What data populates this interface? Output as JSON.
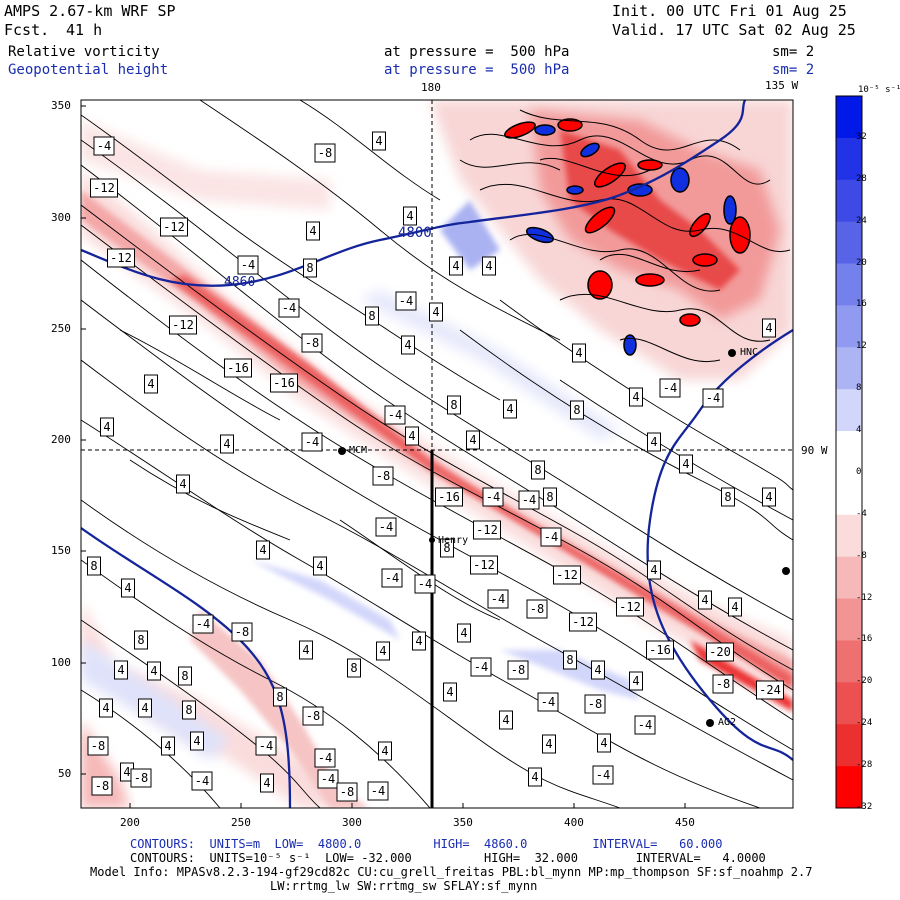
{
  "header": {
    "model": "AMPS 2.67-km WRF SP",
    "forecast_label": "Fcst.",
    "forecast_hours": "41 h",
    "init": "Init. 00 UTC Fri 01 Aug 25",
    "valid": "Valid. 17 UTC Sat 02 Aug 25",
    "field1": "Relative vorticity",
    "field2": "Geopotential height",
    "pressure1": "at pressure =  500 hPa",
    "pressure2": "at pressure =  500 hPa",
    "sm1": "sm= 2",
    "sm2": "sm= 2"
  },
  "map": {
    "top_lon_left": "180",
    "top_lon_right": "135 W",
    "right_lon": "90 W",
    "y_ticks": [
      "350",
      "300",
      "250",
      "200",
      "150",
      "100",
      "50"
    ],
    "x_ticks": [
      "200",
      "250",
      "300",
      "350",
      "400",
      "450"
    ],
    "stations": [
      "MCM",
      "Henry",
      "HNC",
      "AG2"
    ],
    "height_contour_labels": [
      "4800",
      "4860"
    ]
  },
  "colorbar": {
    "unit": "10⁻⁵ s⁻¹",
    "ticks": [
      "32",
      "28",
      "24",
      "20",
      "16",
      "12",
      "8",
      "4",
      "0",
      "-4",
      "-8",
      "-12",
      "-16",
      "-20",
      "-24",
      "-28",
      "-32"
    ],
    "colors": [
      "#0018e8",
      "#2232e6",
      "#3d4ae6",
      "#5864e8",
      "#7480ec",
      "#909af0",
      "#acb4f4",
      "#d2d6fa",
      "#ffffff",
      "#ffffff",
      "#fadcdc",
      "#f6b8b8",
      "#f29494",
      "#ee7070",
      "#ec5050",
      "#ec3030",
      "#ff0000"
    ]
  },
  "footer": {
    "line1": "CONTOURS:  UNITS=m  LOW=  4800.0          HIGH=  4860.0         INTERVAL=   60.000",
    "line2": "CONTOURS:  UNITS=10⁻⁵ s⁻¹  LOW= -32.000          HIGH=  32.000        INTERVAL=   4.0000",
    "line3": "Model Info: MPASv8.2.3-194-gf29cd82c CU:cu_grell_freitas PBL:bl_mynn MP:mp_thompson SF:sf_noahmp 2.7",
    "line4": "LW:rrtmg_lw SW:rrtmg_sw SFLAY:sf_mynn"
  },
  "contour_labels": [
    [
      "-4",
      104,
      146
    ],
    [
      "-8",
      325,
      153
    ],
    [
      "4",
      379,
      141
    ],
    [
      "-12",
      104,
      188
    ],
    [
      "4",
      410,
      216
    ],
    [
      "-12",
      174,
      227
    ],
    [
      "4",
      313,
      231
    ],
    [
      "-12",
      121,
      258
    ],
    [
      "-4",
      248,
      265
    ],
    [
      "8",
      310,
      268
    ],
    [
      "4",
      456,
      266
    ],
    [
      "4",
      489,
      266
    ],
    [
      "-4",
      289,
      308
    ],
    [
      "-4",
      406,
      301
    ],
    [
      "8",
      372,
      316
    ],
    [
      "4",
      436,
      312
    ],
    [
      "-12",
      183,
      325
    ],
    [
      "-8",
      312,
      343
    ],
    [
      "4",
      408,
      345
    ],
    [
      "4",
      579,
      353
    ],
    [
      "4",
      769,
      328
    ],
    [
      "-16",
      238,
      368
    ],
    [
      "4",
      151,
      384
    ],
    [
      "-16",
      284,
      383
    ],
    [
      "4",
      636,
      397
    ],
    [
      "-4",
      713,
      398
    ],
    [
      "-4",
      670,
      388
    ],
    [
      "-4",
      395,
      415
    ],
    [
      "8",
      454,
      405
    ],
    [
      "4",
      510,
      409
    ],
    [
      "8",
      577,
      410
    ],
    [
      "4",
      107,
      427
    ],
    [
      "4",
      227,
      444
    ],
    [
      "-4",
      312,
      442
    ],
    [
      "4",
      412,
      436
    ],
    [
      "4",
      473,
      440
    ],
    [
      "4",
      654,
      442
    ],
    [
      "-8",
      383,
      476
    ],
    [
      "8",
      538,
      470
    ],
    [
      "4",
      686,
      464
    ],
    [
      "4",
      183,
      484
    ],
    [
      "-16",
      449,
      497
    ],
    [
      "-4",
      493,
      497
    ],
    [
      "-4",
      529,
      500
    ],
    [
      "8",
      550,
      497
    ],
    [
      "8",
      728,
      497
    ],
    [
      "4",
      769,
      497
    ],
    [
      "-4",
      386,
      527
    ],
    [
      "-12",
      487,
      530
    ],
    [
      "-4",
      551,
      537
    ],
    [
      "8",
      447,
      548
    ],
    [
      "4",
      263,
      550
    ],
    [
      "-12",
      484,
      565
    ],
    [
      "8",
      94,
      566
    ],
    [
      "4",
      320,
      566
    ],
    [
      "-4",
      392,
      578
    ],
    [
      "4",
      128,
      588
    ],
    [
      "-4",
      425,
      584
    ],
    [
      "-12",
      567,
      575
    ],
    [
      "4",
      654,
      570
    ],
    [
      "-4",
      498,
      599
    ],
    [
      "-8",
      537,
      609
    ],
    [
      "-12",
      630,
      607
    ],
    [
      "4",
      705,
      600
    ],
    [
      "4",
      735,
      607
    ],
    [
      "-4",
      203,
      624
    ],
    [
      "-8",
      242,
      632
    ],
    [
      "4",
      464,
      633
    ],
    [
      "-12",
      583,
      622
    ],
    [
      "8",
      141,
      640
    ],
    [
      "4",
      419,
      641
    ],
    [
      "4",
      306,
      650
    ],
    [
      "4",
      383,
      651
    ],
    [
      "8",
      570,
      660
    ],
    [
      "-16",
      660,
      650
    ],
    [
      "-20",
      720,
      652
    ],
    [
      "4",
      121,
      670
    ],
    [
      "4",
      154,
      671
    ],
    [
      "8",
      185,
      676
    ],
    [
      "8",
      354,
      668
    ],
    [
      "-4",
      481,
      667
    ],
    [
      "-8",
      518,
      670
    ],
    [
      "4",
      598,
      670
    ],
    [
      "4",
      636,
      681
    ],
    [
      "-8",
      723,
      684
    ],
    [
      "-24",
      770,
      690
    ],
    [
      "8",
      280,
      697
    ],
    [
      "4",
      106,
      708
    ],
    [
      "4",
      145,
      708
    ],
    [
      "8",
      189,
      710
    ],
    [
      "4",
      450,
      692
    ],
    [
      "-4",
      548,
      702
    ],
    [
      "-8",
      595,
      704
    ],
    [
      "-8",
      313,
      716
    ],
    [
      "4",
      506,
      720
    ],
    [
      "-4",
      645,
      725
    ],
    [
      "4",
      197,
      741
    ],
    [
      "4",
      168,
      746
    ],
    [
      "-4",
      266,
      746
    ],
    [
      "-4",
      325,
      758
    ],
    [
      "4",
      385,
      751
    ],
    [
      "4",
      604,
      743
    ],
    [
      "-8",
      98,
      746
    ],
    [
      "4",
      127,
      772
    ],
    [
      "4",
      549,
      744
    ],
    [
      "-8",
      141,
      778
    ],
    [
      "-4",
      202,
      781
    ],
    [
      "-4",
      328,
      779
    ],
    [
      "4",
      267,
      783
    ],
    [
      "4",
      535,
      777
    ],
    [
      "-4",
      603,
      775
    ],
    [
      "-8",
      102,
      786
    ],
    [
      "-8",
      347,
      792
    ],
    [
      "-4",
      378,
      791
    ]
  ]
}
